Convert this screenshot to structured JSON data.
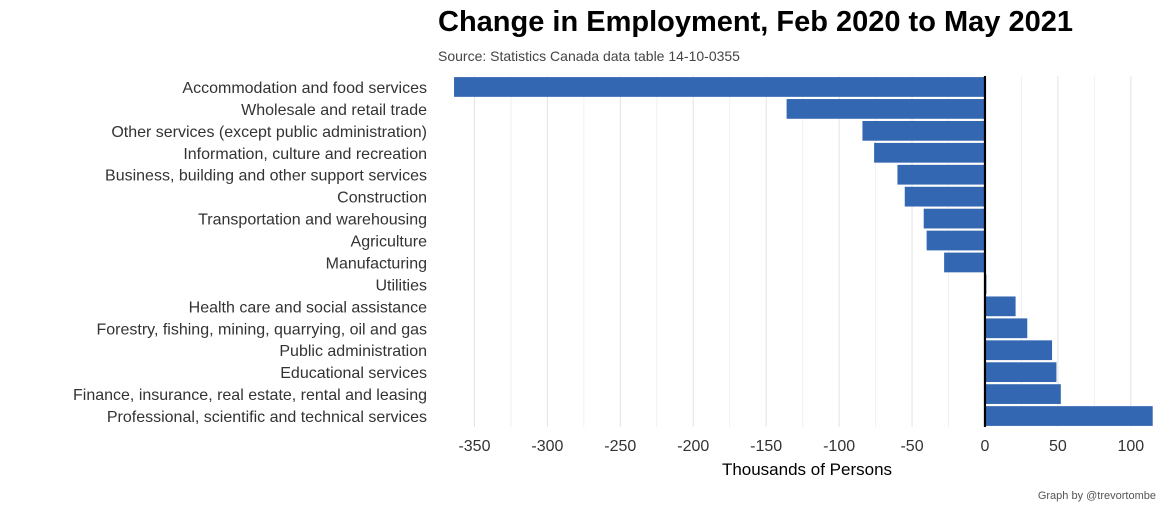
{
  "chart_data": {
    "type": "bar",
    "orientation": "horizontal",
    "title": "Change in Employment, Feb 2020 to May 2021",
    "subtitle": "Source: Statistics Canada data table 14-10-0355",
    "xlabel": "Thousands of Persons",
    "ylabel": "",
    "caption": "Graph by @trevortombe",
    "bar_color": "#3467b1",
    "zero_line_color": "#000000",
    "grid": true,
    "xlim": [
      -375,
      120
    ],
    "xticks": [
      -350,
      -300,
      -250,
      -200,
      -150,
      -100,
      -50,
      0,
      50,
      100
    ],
    "categories": [
      "Accommodation and food services",
      "Wholesale and retail trade",
      "Other services (except public administration)",
      "Information, culture and recreation",
      "Business, building and other support services",
      "Construction",
      "Transportation and warehousing",
      "Agriculture",
      "Manufacturing",
      "Utilities",
      "Health care and social assistance",
      "Forestry, fishing, mining, quarrying, oil and gas",
      "Public administration",
      "Educational services",
      "Finance, insurance, real estate, rental and leasing",
      "Professional, scientific and technical services"
    ],
    "values": [
      -364,
      -136,
      -84,
      -76,
      -60,
      -55,
      -42,
      -40,
      -28,
      1,
      21,
      29,
      46,
      49,
      52,
      115
    ]
  }
}
